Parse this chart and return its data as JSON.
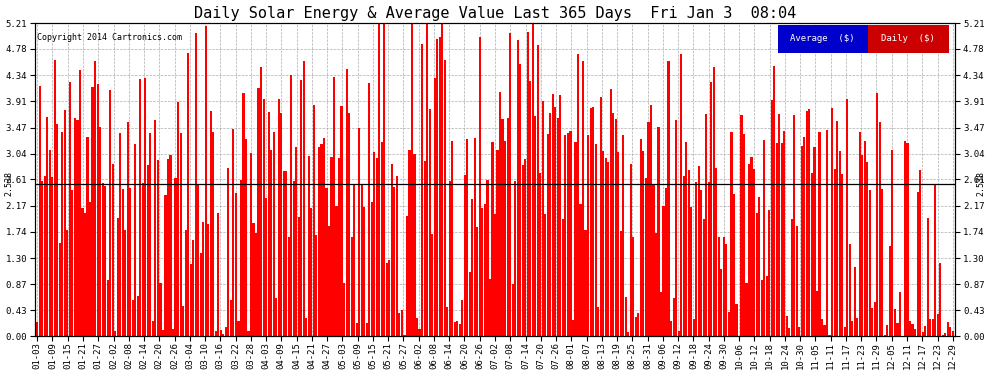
{
  "title": "Daily Solar Energy & Average Value Last 365 Days  Fri Jan 3  08:04",
  "copyright": "Copyright 2014 Cartronics.com",
  "average_value": 2.538,
  "y_max": 5.21,
  "y_min": 0.0,
  "yticks": [
    0.0,
    0.43,
    0.87,
    1.3,
    1.74,
    2.17,
    2.61,
    3.04,
    3.47,
    3.91,
    4.34,
    4.78,
    5.21
  ],
  "bar_color": "#FF0000",
  "avg_line_color": "#000000",
  "background_color": "#FFFFFF",
  "plot_bg_color": "#FFFFFF",
  "grid_color": "#999999",
  "title_fontsize": 11,
  "tick_fontsize": 6.5,
  "avg_label": "2.538",
  "legend_avg_color": "#0000CC",
  "legend_daily_color": "#CC0000",
  "xtick_labels": [
    "01-03",
    "01-09",
    "01-15",
    "01-21",
    "01-27",
    "02-02",
    "02-08",
    "02-14",
    "02-20",
    "02-26",
    "03-04",
    "03-10",
    "03-16",
    "03-22",
    "03-28",
    "04-03",
    "04-09",
    "04-15",
    "04-21",
    "04-27",
    "05-03",
    "05-09",
    "05-15",
    "05-21",
    "05-27",
    "06-02",
    "06-08",
    "06-14",
    "06-20",
    "06-26",
    "07-02",
    "07-08",
    "07-14",
    "07-20",
    "07-26",
    "08-01",
    "08-07",
    "08-13",
    "08-19",
    "08-25",
    "08-31",
    "09-06",
    "09-12",
    "09-18",
    "09-24",
    "09-30",
    "10-06",
    "10-12",
    "10-18",
    "10-24",
    "10-30",
    "11-05",
    "11-11",
    "11-17",
    "11-23",
    "11-29",
    "12-05",
    "12-11",
    "12-17",
    "12-23",
    "12-29"
  ]
}
